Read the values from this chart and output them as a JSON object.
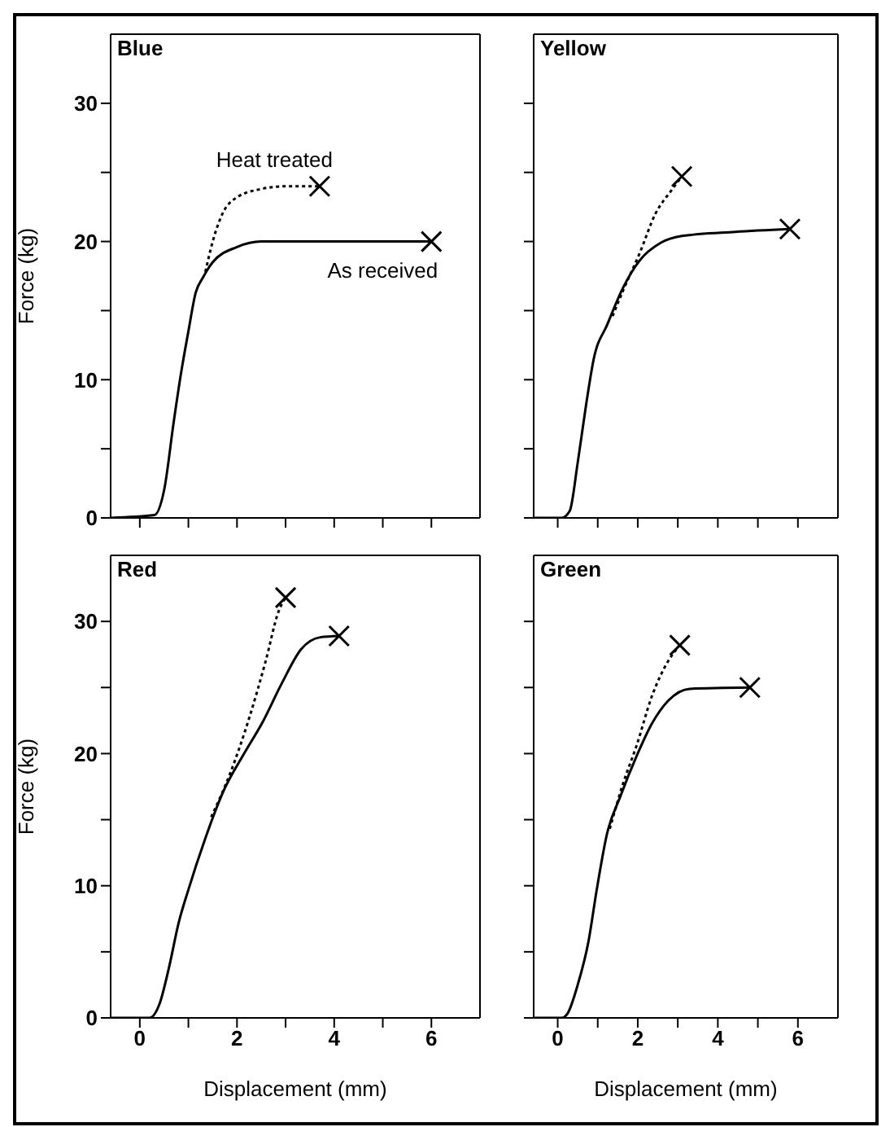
{
  "chart_data": [
    {
      "type": "line",
      "title": "Blue",
      "ylabel": "Force (kg)",
      "xlim": [
        -0.6,
        7
      ],
      "ylim": [
        0,
        35
      ],
      "xticks": [
        0,
        {
          "value": 1,
          "label": null
        },
        2,
        {
          "value": 3,
          "label": null
        },
        4,
        {
          "value": 5,
          "label": null
        },
        6
      ],
      "yticks": [
        0,
        {
          "value": 5,
          "label": null
        },
        10,
        {
          "value": 15,
          "label": null
        },
        20,
        {
          "value": 25,
          "label": null
        },
        30
      ],
      "tick_labels": "y",
      "series": [
        {
          "name": "Heat treated",
          "color": "#000000",
          "line_style": "dotted",
          "x": [
            1.35,
            1.5,
            1.7,
            2.0,
            2.5,
            3.0,
            3.7
          ],
          "values": [
            17.8,
            20,
            22,
            23.2,
            23.8,
            24,
            24
          ]
        },
        {
          "name": "As received",
          "color": "#000000",
          "line_style": "solid",
          "x": [
            -0.6,
            0.3,
            0.5,
            0.7,
            0.85,
            1.0,
            1.15,
            1.3,
            1.5,
            2.0,
            2.5,
            3.0,
            6.0
          ],
          "values": [
            0,
            0.2,
            2,
            7,
            10.5,
            13.5,
            16.3,
            17.4,
            18.5,
            19.6,
            20,
            20,
            20
          ]
        },
        {
          "type": "scatter",
          "marker": "cross",
          "color": "#000000",
          "x": [
            3.7,
            6.0
          ],
          "values": [
            24,
            20
          ]
        }
      ]
    },
    {
      "type": "line",
      "title": "Yellow",
      "xlim": [
        -0.6,
        7
      ],
      "ylim": [
        0,
        35
      ],
      "xticks": [
        0,
        {
          "value": 1,
          "label": null
        },
        2,
        {
          "value": 3,
          "label": null
        },
        4,
        {
          "value": 5,
          "label": null
        },
        6
      ],
      "yticks": [
        0,
        {
          "value": 5,
          "label": null
        },
        10,
        {
          "value": 15,
          "label": null
        },
        20,
        {
          "value": 25,
          "label": null
        },
        30
      ],
      "tick_labels": false,
      "series": [
        {
          "color": "#000000",
          "line_style": "dotted",
          "x": [
            1.37,
            1.64,
            2.04,
            2.44,
            2.84,
            3.1
          ],
          "values": [
            14.6,
            16.5,
            19.1,
            22,
            23.7,
            24.7
          ]
        },
        {
          "color": "#000000",
          "line_style": "solid",
          "x": [
            -0.6,
            0.1,
            0.3,
            0.5,
            0.7,
            0.9,
            1.24,
            1.64,
            2.04,
            2.57,
            3.1,
            4.44,
            5.8
          ],
          "values": [
            0,
            0,
            0.5,
            4,
            8,
            11.5,
            14,
            16.7,
            18.6,
            19.9,
            20.4,
            20.7,
            20.9
          ]
        },
        {
          "type": "scatter",
          "marker": "cross",
          "color": "#000000",
          "x": [
            3.1,
            5.8
          ],
          "values": [
            24.7,
            20.9
          ]
        }
      ]
    },
    {
      "type": "line",
      "title": "Red",
      "xlabel": "Displacement (mm)",
      "ylabel": "Force (kg)",
      "xlim": [
        -0.6,
        7
      ],
      "ylim": [
        0,
        35
      ],
      "xticks": [
        0,
        {
          "value": 1,
          "label": null
        },
        2,
        {
          "value": 3,
          "label": null
        },
        4,
        {
          "value": 5,
          "label": null
        },
        6
      ],
      "yticks": [
        0,
        {
          "value": 5,
          "label": null
        },
        10,
        {
          "value": 15,
          "label": null
        },
        20,
        {
          "value": 25,
          "label": null
        },
        30
      ],
      "series": [
        {
          "color": "#000000",
          "line_style": "dotted",
          "x": [
            1.47,
            1.87,
            2.26,
            2.59,
            2.86,
            3.0
          ],
          "values": [
            15.2,
            18.6,
            22.8,
            27,
            30.8,
            31.8
          ]
        },
        {
          "color": "#000000",
          "line_style": "solid",
          "x": [
            -0.6,
            0.2,
            0.4,
            0.6,
            0.8,
            1.0,
            1.34,
            1.74,
            2.13,
            2.53,
            2.92,
            3.32,
            3.71,
            4.1
          ],
          "values": [
            0,
            0,
            1,
            3.8,
            7.2,
            9.7,
            13.5,
            17.3,
            19.9,
            22.4,
            25.3,
            27.9,
            28.8,
            28.9
          ]
        },
        {
          "type": "scatter",
          "marker": "cross",
          "color": "#000000",
          "x": [
            3.0,
            4.1
          ],
          "values": [
            31.8,
            28.9
          ]
        }
      ]
    },
    {
      "type": "line",
      "title": "Green",
      "xlabel": "Displacement (mm)",
      "xlim": [
        -0.6,
        7
      ],
      "ylim": [
        0,
        35
      ],
      "xticks": [
        0,
        {
          "value": 1,
          "label": null
        },
        2,
        {
          "value": 3,
          "label": null
        },
        4,
        {
          "value": 5,
          "label": null
        },
        6
      ],
      "yticks": [
        0,
        {
          "value": 5,
          "label": null
        },
        10,
        {
          "value": 15,
          "label": null
        },
        20,
        {
          "value": 25,
          "label": null
        },
        30
      ],
      "tick_labels": "x",
      "series": [
        {
          "color": "#000000",
          "line_style": "dotted",
          "x": [
            1.3,
            1.63,
            1.97,
            2.36,
            2.76,
            3.05
          ],
          "values": [
            14.3,
            17.7,
            20.6,
            24.4,
            27,
            28.2
          ]
        },
        {
          "color": "#000000",
          "line_style": "solid",
          "x": [
            -0.6,
            0.1,
            0.24,
            0.5,
            0.77,
            0.97,
            1.23,
            1.57,
            1.97,
            2.36,
            2.76,
            3.3,
            4.8
          ],
          "values": [
            0,
            0,
            0.3,
            2.5,
            5.8,
            9.6,
            13.9,
            16.8,
            19.8,
            22.3,
            24,
            24.9,
            25
          ]
        },
        {
          "type": "scatter",
          "marker": "cross",
          "color": "#000000",
          "x": [
            3.05,
            4.8
          ],
          "values": [
            28.2,
            25
          ]
        }
      ]
    }
  ]
}
